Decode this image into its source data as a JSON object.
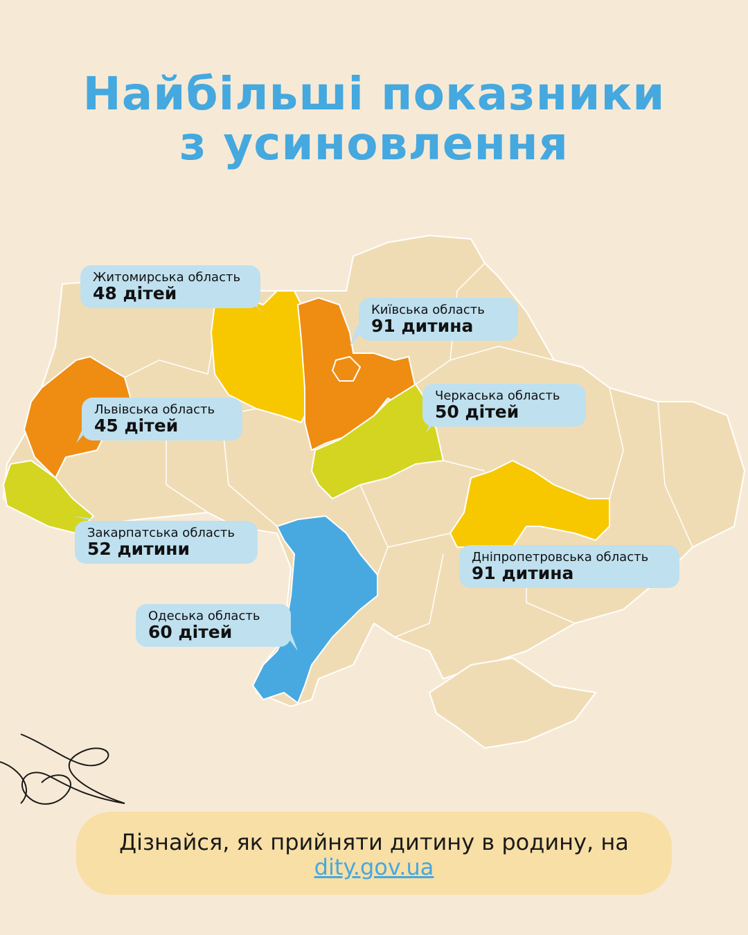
{
  "title": {
    "line1": "Найбільші показники",
    "line2": "з усиновлення"
  },
  "colors": {
    "title": "#45a8df",
    "base_region": "#f0dcb4",
    "orange": "#ef8c12",
    "yellow": "#f7c800",
    "lime": "#d4d520",
    "blue": "#48a9e0",
    "callout": "#bfe0ef",
    "footer": "#f7dfa6"
  },
  "regions": [
    {
      "name": "Житомирська область",
      "value": "48 дітей",
      "color": "yellow"
    },
    {
      "name": "Київська область",
      "value": "91 дитина",
      "color": "orange"
    },
    {
      "name": "Черкаська область",
      "value": "50 дітей",
      "color": "lime"
    },
    {
      "name": "Львівська область",
      "value": "45 дітей",
      "color": "orange"
    },
    {
      "name": "Закарпатська область",
      "value": "52 дитини",
      "color": "lime"
    },
    {
      "name": "Дніпропетровська область",
      "value": "91 дитина",
      "color": "yellow"
    },
    {
      "name": "Одеська область",
      "value": "60 дітей",
      "color": "blue"
    }
  ],
  "footer": {
    "text": "Дізнайся, як прийняти дитину в родину, на",
    "link": "dity.gov.ua"
  }
}
